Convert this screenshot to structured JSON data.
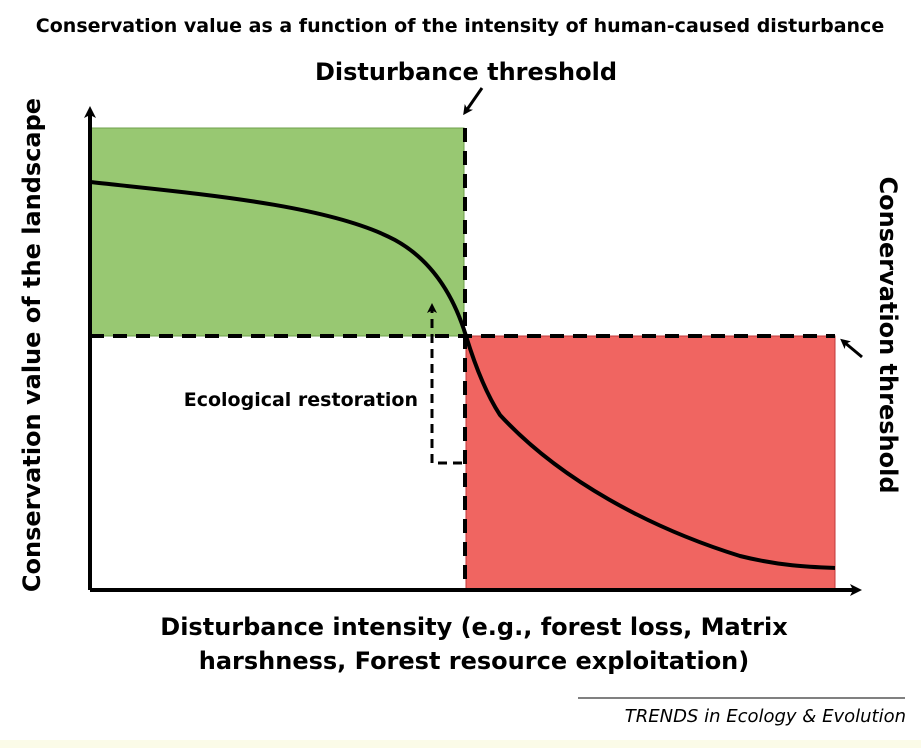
{
  "title": "Conservation value as a function of the intensity of human-caused disturbance",
  "labels": {
    "disturbance_threshold": "Disturbance threshold",
    "conservation_threshold": "Conservation threshold",
    "ecological_restoration": "Ecological restoration",
    "y_axis": "Conservation value of the landscape",
    "x_axis_line1": "Disturbance intensity (e.g., forest loss, Matrix",
    "x_axis_line2": "harshness, Forest resource exploitation)"
  },
  "footer": {
    "journal": "TRENDS in Ecology & Evolution"
  },
  "colors": {
    "green_zone": "#98c872",
    "red_zone": "#f06561",
    "curve": "#000000",
    "axes": "#000000"
  }
}
